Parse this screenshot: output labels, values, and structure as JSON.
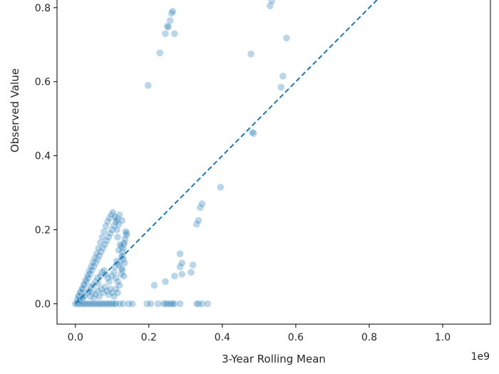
{
  "chart_data": {
    "type": "scatter",
    "title": "",
    "xlabel": "3-Year Rolling Mean",
    "ylabel": "Observed Value",
    "x_scale_label": "1e9",
    "xlim": [
      -0.05,
      1.13
    ],
    "ylim": [
      -0.055,
      0.84
    ],
    "x_ticks": [
      0.0,
      0.2,
      0.4,
      0.6,
      0.8,
      1.0
    ],
    "x_tick_labels": [
      "0.0",
      "0.2",
      "0.4",
      "0.6",
      "0.8",
      "1.0"
    ],
    "y_ticks": [
      0.0,
      0.2,
      0.4,
      0.6,
      0.8
    ],
    "y_tick_labels": [
      "0.0",
      "0.2",
      "0.4",
      "0.6",
      "0.8"
    ],
    "grid": false,
    "point_color": "#1f77b4",
    "point_alpha": 0.3,
    "reference_line": {
      "style": "dashed",
      "color": "#1f77b4",
      "slope": 1,
      "intercept": 0.0
    },
    "points": [
      [
        0.0,
        0.0
      ],
      [
        0.003,
        0.0
      ],
      [
        0.005,
        0.002
      ],
      [
        0.008,
        0.005
      ],
      [
        0.01,
        0.0
      ],
      [
        0.012,
        0.01
      ],
      [
        0.015,
        0.0
      ],
      [
        0.018,
        0.015
      ],
      [
        0.005,
        0.01
      ],
      [
        0.01,
        0.02
      ],
      [
        0.015,
        0.03
      ],
      [
        0.02,
        0.04
      ],
      [
        0.025,
        0.05
      ],
      [
        0.03,
        0.06
      ],
      [
        0.035,
        0.07
      ],
      [
        0.04,
        0.08
      ],
      [
        0.045,
        0.09
      ],
      [
        0.05,
        0.1
      ],
      [
        0.055,
        0.11
      ],
      [
        0.06,
        0.12
      ],
      [
        0.065,
        0.13
      ],
      [
        0.07,
        0.14
      ],
      [
        0.075,
        0.15
      ],
      [
        0.08,
        0.16
      ],
      [
        0.085,
        0.17
      ],
      [
        0.09,
        0.18
      ],
      [
        0.095,
        0.19
      ],
      [
        0.1,
        0.2
      ],
      [
        0.105,
        0.21
      ],
      [
        0.11,
        0.22
      ],
      [
        0.115,
        0.23
      ],
      [
        0.12,
        0.24
      ],
      [
        0.008,
        0.02
      ],
      [
        0.013,
        0.03
      ],
      [
        0.018,
        0.04
      ],
      [
        0.023,
        0.052
      ],
      [
        0.028,
        0.064
      ],
      [
        0.033,
        0.076
      ],
      [
        0.038,
        0.088
      ],
      [
        0.043,
        0.1
      ],
      [
        0.048,
        0.112
      ],
      [
        0.053,
        0.124
      ],
      [
        0.058,
        0.136
      ],
      [
        0.063,
        0.15
      ],
      [
        0.068,
        0.165
      ],
      [
        0.073,
        0.18
      ],
      [
        0.078,
        0.195
      ],
      [
        0.083,
        0.21
      ],
      [
        0.088,
        0.222
      ],
      [
        0.093,
        0.232
      ],
      [
        0.098,
        0.24
      ],
      [
        0.102,
        0.247
      ],
      [
        0.108,
        0.235
      ],
      [
        0.112,
        0.225
      ],
      [
        0.118,
        0.215
      ],
      [
        0.012,
        0.008
      ],
      [
        0.02,
        0.015
      ],
      [
        0.025,
        0.022
      ],
      [
        0.032,
        0.03
      ],
      [
        0.038,
        0.035
      ],
      [
        0.042,
        0.045
      ],
      [
        0.048,
        0.05
      ],
      [
        0.055,
        0.06
      ],
      [
        0.06,
        0.07
      ],
      [
        0.062,
        0.055
      ],
      [
        0.068,
        0.075
      ],
      [
        0.072,
        0.085
      ],
      [
        0.078,
        0.09
      ],
      [
        0.082,
        0.08
      ],
      [
        0.088,
        0.07
      ],
      [
        0.092,
        0.06
      ],
      [
        0.098,
        0.075
      ],
      [
        0.105,
        0.085
      ],
      [
        0.11,
        0.07
      ],
      [
        0.115,
        0.06
      ],
      [
        0.12,
        0.05
      ],
      [
        0.125,
        0.08
      ],
      [
        0.128,
        0.09
      ],
      [
        0.132,
        0.075
      ],
      [
        0.04,
        0.02
      ],
      [
        0.045,
        0.03
      ],
      [
        0.05,
        0.015
      ],
      [
        0.055,
        0.025
      ],
      [
        0.06,
        0.035
      ],
      [
        0.065,
        0.02
      ],
      [
        0.07,
        0.04
      ],
      [
        0.075,
        0.03
      ],
      [
        0.08,
        0.045
      ],
      [
        0.085,
        0.035
      ],
      [
        0.09,
        0.025
      ],
      [
        0.095,
        0.04
      ],
      [
        0.1,
        0.03
      ],
      [
        0.105,
        0.02
      ],
      [
        0.11,
        0.04
      ],
      [
        0.115,
        0.03
      ],
      [
        0.02,
        0.0
      ],
      [
        0.025,
        0.0
      ],
      [
        0.03,
        0.0
      ],
      [
        0.035,
        0.0
      ],
      [
        0.04,
        0.0
      ],
      [
        0.045,
        0.0
      ],
      [
        0.05,
        0.0
      ],
      [
        0.055,
        0.0
      ],
      [
        0.06,
        0.0
      ],
      [
        0.065,
        0.0
      ],
      [
        0.07,
        0.0
      ],
      [
        0.075,
        0.0
      ],
      [
        0.08,
        0.0
      ],
      [
        0.085,
        0.0
      ],
      [
        0.09,
        0.0
      ],
      [
        0.095,
        0.0
      ],
      [
        0.1,
        0.0
      ],
      [
        0.105,
        0.0
      ],
      [
        0.11,
        0.0
      ],
      [
        0.12,
        0.0
      ],
      [
        0.13,
        0.0
      ],
      [
        0.145,
        0.0
      ],
      [
        0.12,
        0.11
      ],
      [
        0.125,
        0.125
      ],
      [
        0.128,
        0.14
      ],
      [
        0.13,
        0.15
      ],
      [
        0.132,
        0.16
      ],
      [
        0.135,
        0.175
      ],
      [
        0.138,
        0.185
      ],
      [
        0.14,
        0.19
      ],
      [
        0.128,
        0.13
      ],
      [
        0.133,
        0.165
      ],
      [
        0.137,
        0.195
      ],
      [
        0.125,
        0.155
      ],
      [
        0.118,
        0.145
      ],
      [
        0.122,
        0.16
      ],
      [
        0.115,
        0.18
      ],
      [
        0.113,
        0.2
      ],
      [
        0.108,
        0.1
      ],
      [
        0.112,
        0.115
      ],
      [
        0.118,
        0.105
      ],
      [
        0.126,
        0.095
      ],
      [
        0.131,
        0.12
      ],
      [
        0.134,
        0.11
      ],
      [
        0.127,
        0.225
      ],
      [
        0.155,
        0.0
      ],
      [
        0.195,
        0.0
      ],
      [
        0.205,
        0.0
      ],
      [
        0.225,
        0.0
      ],
      [
        0.24,
        0.0
      ],
      [
        0.245,
        0.0
      ],
      [
        0.25,
        0.0
      ],
      [
        0.255,
        0.0
      ],
      [
        0.26,
        0.0
      ],
      [
        0.265,
        0.0
      ],
      [
        0.27,
        0.0
      ],
      [
        0.285,
        0.0
      ],
      [
        0.33,
        0.0
      ],
      [
        0.335,
        0.0
      ],
      [
        0.345,
        0.0
      ],
      [
        0.36,
        0.0
      ],
      [
        0.215,
        0.05
      ],
      [
        0.245,
        0.06
      ],
      [
        0.27,
        0.075
      ],
      [
        0.29,
        0.08
      ],
      [
        0.285,
        0.1
      ],
      [
        0.29,
        0.11
      ],
      [
        0.315,
        0.085
      ],
      [
        0.32,
        0.105
      ],
      [
        0.285,
        0.135
      ],
      [
        0.33,
        0.215
      ],
      [
        0.335,
        0.225
      ],
      [
        0.34,
        0.26
      ],
      [
        0.345,
        0.27
      ],
      [
        0.395,
        0.315
      ],
      [
        0.485,
        0.46
      ],
      [
        0.482,
        0.463
      ],
      [
        0.198,
        0.59
      ],
      [
        0.23,
        0.678
      ],
      [
        0.245,
        0.73
      ],
      [
        0.25,
        0.75
      ],
      [
        0.253,
        0.748
      ],
      [
        0.258,
        0.765
      ],
      [
        0.262,
        0.785
      ],
      [
        0.265,
        0.79
      ],
      [
        0.27,
        0.73
      ],
      [
        0.478,
        0.675
      ],
      [
        0.53,
        0.805
      ],
      [
        0.535,
        0.818
      ],
      [
        0.56,
        0.585
      ],
      [
        0.565,
        0.615
      ],
      [
        0.575,
        0.718
      ]
    ]
  }
}
